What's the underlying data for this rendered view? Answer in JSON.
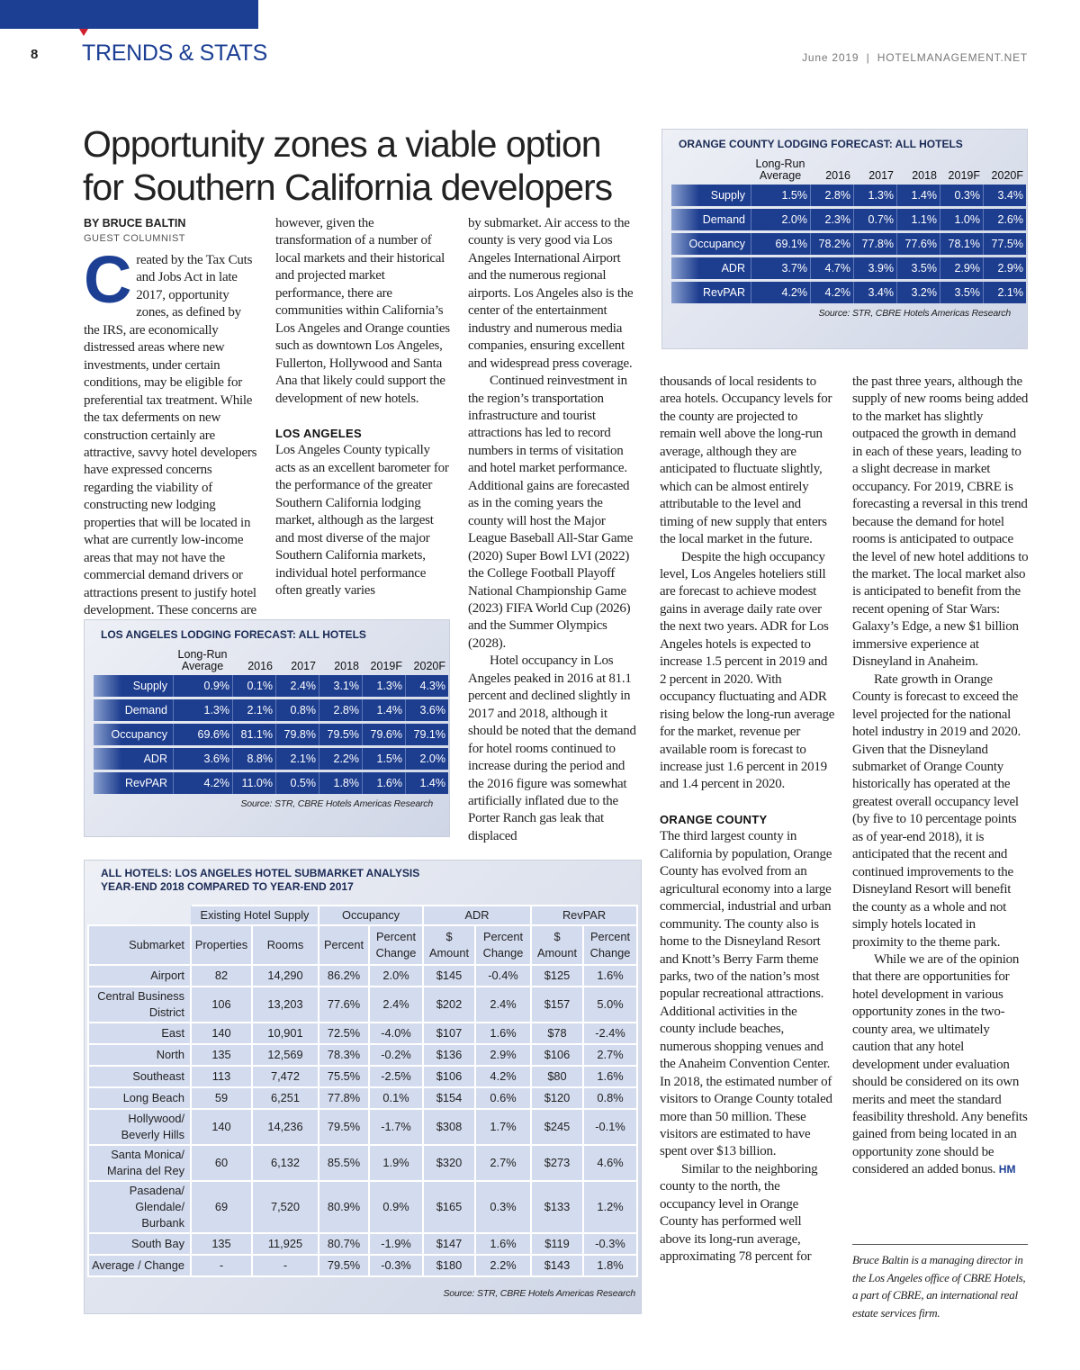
{
  "header": {
    "page_number": "8",
    "section": "TRENDS & STATS",
    "issue": "June 2019  |  HOTELMANAGEMENT.NET"
  },
  "article": {
    "headline": [
      "Opportunity zones a viable option",
      "for Southern California developers"
    ],
    "byline": "BY BRUCE BALTIN",
    "byline_role": "GUEST COLUMNIST",
    "drop_cap": "C",
    "columns": [
      [
        {
          "text": "reated by the Tax Cuts and Jobs Act in late 2017, opportunity zones, as defined by the IRS, are economically distressed areas where new investments, under certain conditions, may be eligible for preferential tax treatment. While the tax deferments on new construction certainly are attractive, savvy hotel developers have expressed concerns regarding the viability of constructing new lodging properties that will be located in what are currently low-income areas that may not have the commercial demand drivers or attractions present to justify hotel development. These concerns are not unfounded;"
        }
      ],
      [
        {
          "text": "however, given the transformation of a number of local markets and their historical and projected market performance, there are communities within California’s Los Angeles and Orange counties such as downtown Los Angeles, Fullerton, Hollywood and Santa Ana that likely could support the development of new hotels."
        },
        {
          "heading": "LOS ANGELES"
        },
        {
          "text": "Los Angeles County typically acts as an excellent barometer for the performance of the greater Southern California lodging market, although as the largest and most diverse of the major Southern California markets, individual hotel performance often greatly varies"
        }
      ],
      [
        {
          "text": "by submarket. Air access to the county is very good via Los Angeles International Airport and the numerous regional airports. Los Angeles also is the center of the entertainment industry and numerous media companies, ensuring excellent and widespread press coverage."
        },
        {
          "text": "Continued reinvestment in the region’s transportation infrastructure and tourist attractions has led to record numbers in terms of visitation and hotel market performance. Additional gains are forecasted as in the coming years the county will host the Major League Baseball All-Star Game (2020) Super Bowl LVI (2022) the College Football Playoff National Championship Game (2023) FIFA World Cup (2026) and the Summer Olympics (2028)."
        },
        {
          "text": "Hotel occupancy in Los Angeles peaked in 2016 at 81.1 percent and declined slightly in 2017 and 2018, although it should be noted that the demand for hotel rooms continued to increase during the period and the 2016 figure was somewhat artificially inflated due to the Porter Ranch gas leak that displaced"
        }
      ],
      [
        {
          "text": "thousands of local residents to area hotels. Occupancy levels for the county are projected to remain well above the long-run average, although they are anticipated to fluctuate slightly, which can be almost entirely attributable to the level and timing of new supply that enters the local market in the future."
        },
        {
          "text": "Despite the high occupancy level, Los Angeles hoteliers still are forecast to achieve modest gains in average daily rate over the next two years. ADR for Los Angeles hotels is expected to increase 1.5 percent in 2019 and 2 percent in 2020. With occupancy fluctuating and ADR rising below the long-run average for the market, revenue per available room is forecast to increase just 1.6 percent in 2019 and 1.4 percent in 2020."
        },
        {
          "heading": "ORANGE COUNTY"
        },
        {
          "text": "The third largest county in California by population, Orange County has evolved from an agricultural economy into a large commercial, industrial and urban community. The county also is home to the Disneyland Resort and Knott’s Berry Farm theme parks, two of the nation’s most popular recreational attractions. Additional activities in the county include beaches, numerous shopping venues and the Anaheim Convention Center. In 2018, the estimated number of visitors to Orange County totaled more than 50 million. These visitors are estimated to have spent over $13 billion."
        },
        {
          "text": "Similar to the neighboring county to the north, the occupancy level in Orange County has performed well above its long-run average, approximating 78 percent for"
        }
      ],
      [
        {
          "text": "the past three years, although the supply of new rooms being added to the market has slightly outpaced the growth in demand in each of these years, leading to a slight decrease in market occupancy. For 2019, CBRE is forecasting a reversal in this trend because the demand for hotel rooms is anticipated to outpace the level of new hotel additions to the market. The local market also is anticipated to benefit from the recent opening of Star Wars: Galaxy’s Edge, a new $1 billion immersive experience at Disneyland in Anaheim."
        },
        {
          "text": "Rate growth in Orange County is forecast to exceed the level projected for the national hotel industry in 2019 and 2020. Given that the Disneyland submarket of Orange County historically has operated at the greatest overall occupancy level (by five to 10 percentage points as of year-end 2018), it is anticipated that the recent and continued improvements to the Disneyland Resort will benefit the county as a whole and not simply hotels located in proximity to the theme park."
        },
        {
          "text": "While we are of the opinion that there are opportunities for hotel development in various opportunity zones in the two-county area, we ultimately caution that any hotel development under evaluation should be considered on its own merits and meet the standard feasibility threshold. Any benefits gained from being located in an opportunity zone should be considered an added bonus."
        }
      ]
    ],
    "end_mark": "HM",
    "bio": "Bruce Baltin is a managing director in the Los Angeles office of CBRE Hotels, a part of CBRE, an international real estate services firm."
  },
  "orange_county_forecast": {
    "title": "ORANGE COUNTY LODGING FORECAST: ALL HOTELS",
    "columns": [
      "Long-Run Average",
      "2016",
      "2017",
      "2018",
      "2019F",
      "2020F"
    ],
    "rows": [
      {
        "label": "Supply",
        "values": [
          "1.5%",
          "2.8%",
          "1.3%",
          "1.4%",
          "0.3%",
          "3.4%"
        ]
      },
      {
        "label": "Demand",
        "values": [
          "2.0%",
          "2.3%",
          "0.7%",
          "1.1%",
          "1.0%",
          "2.6%"
        ]
      },
      {
        "label": "Occupancy",
        "values": [
          "69.1%",
          "78.2%",
          "77.8%",
          "77.6%",
          "78.1%",
          "77.5%"
        ]
      },
      {
        "label": "ADR",
        "values": [
          "3.7%",
          "4.7%",
          "3.9%",
          "3.5%",
          "2.9%",
          "2.9%"
        ]
      },
      {
        "label": "RevPAR",
        "values": [
          "4.2%",
          "4.2%",
          "3.4%",
          "3.2%",
          "3.5%",
          "2.1%"
        ]
      }
    ],
    "source": "Source: STR, CBRE Hotels Americas Research"
  },
  "los_angeles_forecast": {
    "title": "LOS ANGELES LODGING FORECAST: ALL HOTELS",
    "columns": [
      "Long-Run Average",
      "2016",
      "2017",
      "2018",
      "2019F",
      "2020F"
    ],
    "rows": [
      {
        "label": "Supply",
        "values": [
          "0.9%",
          "0.1%",
          "2.4%",
          "3.1%",
          "1.3%",
          "4.3%"
        ]
      },
      {
        "label": "Demand",
        "values": [
          "1.3%",
          "2.1%",
          "0.8%",
          "2.8%",
          "1.4%",
          "3.6%"
        ]
      },
      {
        "label": "Occupancy",
        "values": [
          "69.6%",
          "81.1%",
          "79.8%",
          "79.5%",
          "79.6%",
          "79.1%"
        ]
      },
      {
        "label": "ADR",
        "values": [
          "3.6%",
          "8.8%",
          "2.1%",
          "2.2%",
          "1.5%",
          "2.0%"
        ]
      },
      {
        "label": "RevPAR",
        "values": [
          "4.2%",
          "11.0%",
          "0.5%",
          "1.8%",
          "1.6%",
          "1.4%"
        ]
      }
    ],
    "source": "Source: STR, CBRE Hotels Americas Research"
  },
  "submarket_table": {
    "title": [
      "ALL HOTELS: LOS ANGELES HOTEL SUBMARKET ANALYSIS",
      "YEAR-END 2018 COMPARED TO YEAR-END 2017"
    ],
    "group_headers": [
      "Existing Hotel Supply",
      "Occupancy",
      "ADR",
      "RevPAR"
    ],
    "columns": [
      "Submarket",
      "Properties",
      "Rooms",
      "Percent",
      "Percent Change",
      "$ Amount",
      "Percent Change",
      "$ Amount",
      "Percent Change"
    ],
    "rows": [
      [
        "Airport",
        "82",
        "14,290",
        "86.2%",
        "2.0%",
        "$145",
        "-0.4%",
        "$125",
        "1.6%"
      ],
      [
        "Central Business District",
        "106",
        "13,203",
        "77.6%",
        "2.4%",
        "$202",
        "2.4%",
        "$157",
        "5.0%"
      ],
      [
        "East",
        "140",
        "10,901",
        "72.5%",
        "-4.0%",
        "$107",
        "1.6%",
        "$78",
        "-2.4%"
      ],
      [
        "North",
        "135",
        "12,569",
        "78.3%",
        "-0.2%",
        "$136",
        "2.9%",
        "$106",
        "2.7%"
      ],
      [
        "Southeast",
        "113",
        "7,472",
        "75.5%",
        "-2.5%",
        "$106",
        "4.2%",
        "$80",
        "1.6%"
      ],
      [
        "Long Beach",
        "59",
        "6,251",
        "77.8%",
        "0.1%",
        "$154",
        "0.6%",
        "$120",
        "0.8%"
      ],
      [
        "Hollywood/ Beverly Hills",
        "140",
        "14,236",
        "79.5%",
        "-1.7%",
        "$308",
        "1.7%",
        "$245",
        "-0.1%"
      ],
      [
        "Santa Monica/ Marina del Rey",
        "60",
        "6,132",
        "85.5%",
        "1.9%",
        "$320",
        "2.7%",
        "$273",
        "4.6%"
      ],
      [
        "Pasadena/ Glendale/ Burbank",
        "69",
        "7,520",
        "80.9%",
        "0.9%",
        "$165",
        "0.3%",
        "$133",
        "1.2%"
      ],
      [
        "South Bay",
        "135",
        "11,925",
        "80.7%",
        "-1.9%",
        "$147",
        "1.6%",
        "$119",
        "-0.3%"
      ],
      [
        "Average / Change",
        "-",
        "-",
        "79.5%",
        "-0.3%",
        "$180",
        "2.2%",
        "$143",
        "1.8%"
      ]
    ],
    "source": "Source: STR, CBRE Hotels Americas Research"
  }
}
